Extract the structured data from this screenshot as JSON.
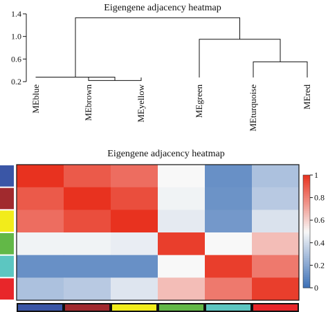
{
  "chart_data": [
    {
      "type": "dendrogram",
      "title": "Eigengene adjacency heatmap",
      "ylim": [
        0.2,
        1.4
      ],
      "yticks": [
        "1.4",
        "1.0",
        "0.6",
        "0.2"
      ],
      "leaves": [
        "MEblue",
        "MEbrown",
        "MEyellow",
        "MEgreen",
        "MEturquoise",
        "MEred"
      ],
      "merges": [
        {
          "a": "MEbrown",
          "b": "MEyellow",
          "height": 0.22
        },
        {
          "a": "MEblue",
          "b": "MEbrown+MEyellow",
          "height": 0.28
        },
        {
          "a": "MEturquoise",
          "b": "MEred",
          "height": 0.55
        },
        {
          "a": "MEgreen",
          "b": "MEturquoise+MEred",
          "height": 0.95
        },
        {
          "a": "MEblue+MEbrown+MEyellow",
          "b": "MEgreen+MEturquoise+MEred",
          "height": 1.33
        }
      ]
    },
    {
      "type": "heatmap",
      "title": "Eigengene adjacency heatmap",
      "rows": [
        "MEblue",
        "MEbrown",
        "MEyellow",
        "MEgreen",
        "MEturquoise",
        "MEred"
      ],
      "cols": [
        "MEblue",
        "MEbrown",
        "MEyellow",
        "MEgreen",
        "MEturquoise",
        "MEred"
      ],
      "values": [
        [
          1.0,
          0.9,
          0.85,
          0.5,
          0.12,
          0.3
        ],
        [
          0.9,
          1.0,
          0.93,
          0.48,
          0.13,
          0.33
        ],
        [
          0.85,
          0.93,
          1.0,
          0.45,
          0.15,
          0.42
        ],
        [
          0.48,
          0.48,
          0.46,
          0.97,
          0.5,
          0.65
        ],
        [
          0.12,
          0.12,
          0.12,
          0.5,
          0.97,
          0.82
        ],
        [
          0.3,
          0.33,
          0.43,
          0.65,
          0.82,
          0.97
        ]
      ],
      "colorbar": {
        "ticks": [
          0,
          0.2,
          0.4,
          0.6,
          0.8,
          1
        ],
        "tick_labels": [
          "0",
          "0.2",
          "0.4",
          "0.6",
          "0.8",
          "1"
        ],
        "low_color": "#3b6fb6",
        "mid_color": "#f8f8f8",
        "high_color": "#e8321f"
      },
      "module_colors": [
        "#3a56a6",
        "#a12a2e",
        "#f2ec1b",
        "#62b847",
        "#5cc6c1",
        "#e8262a"
      ]
    }
  ]
}
